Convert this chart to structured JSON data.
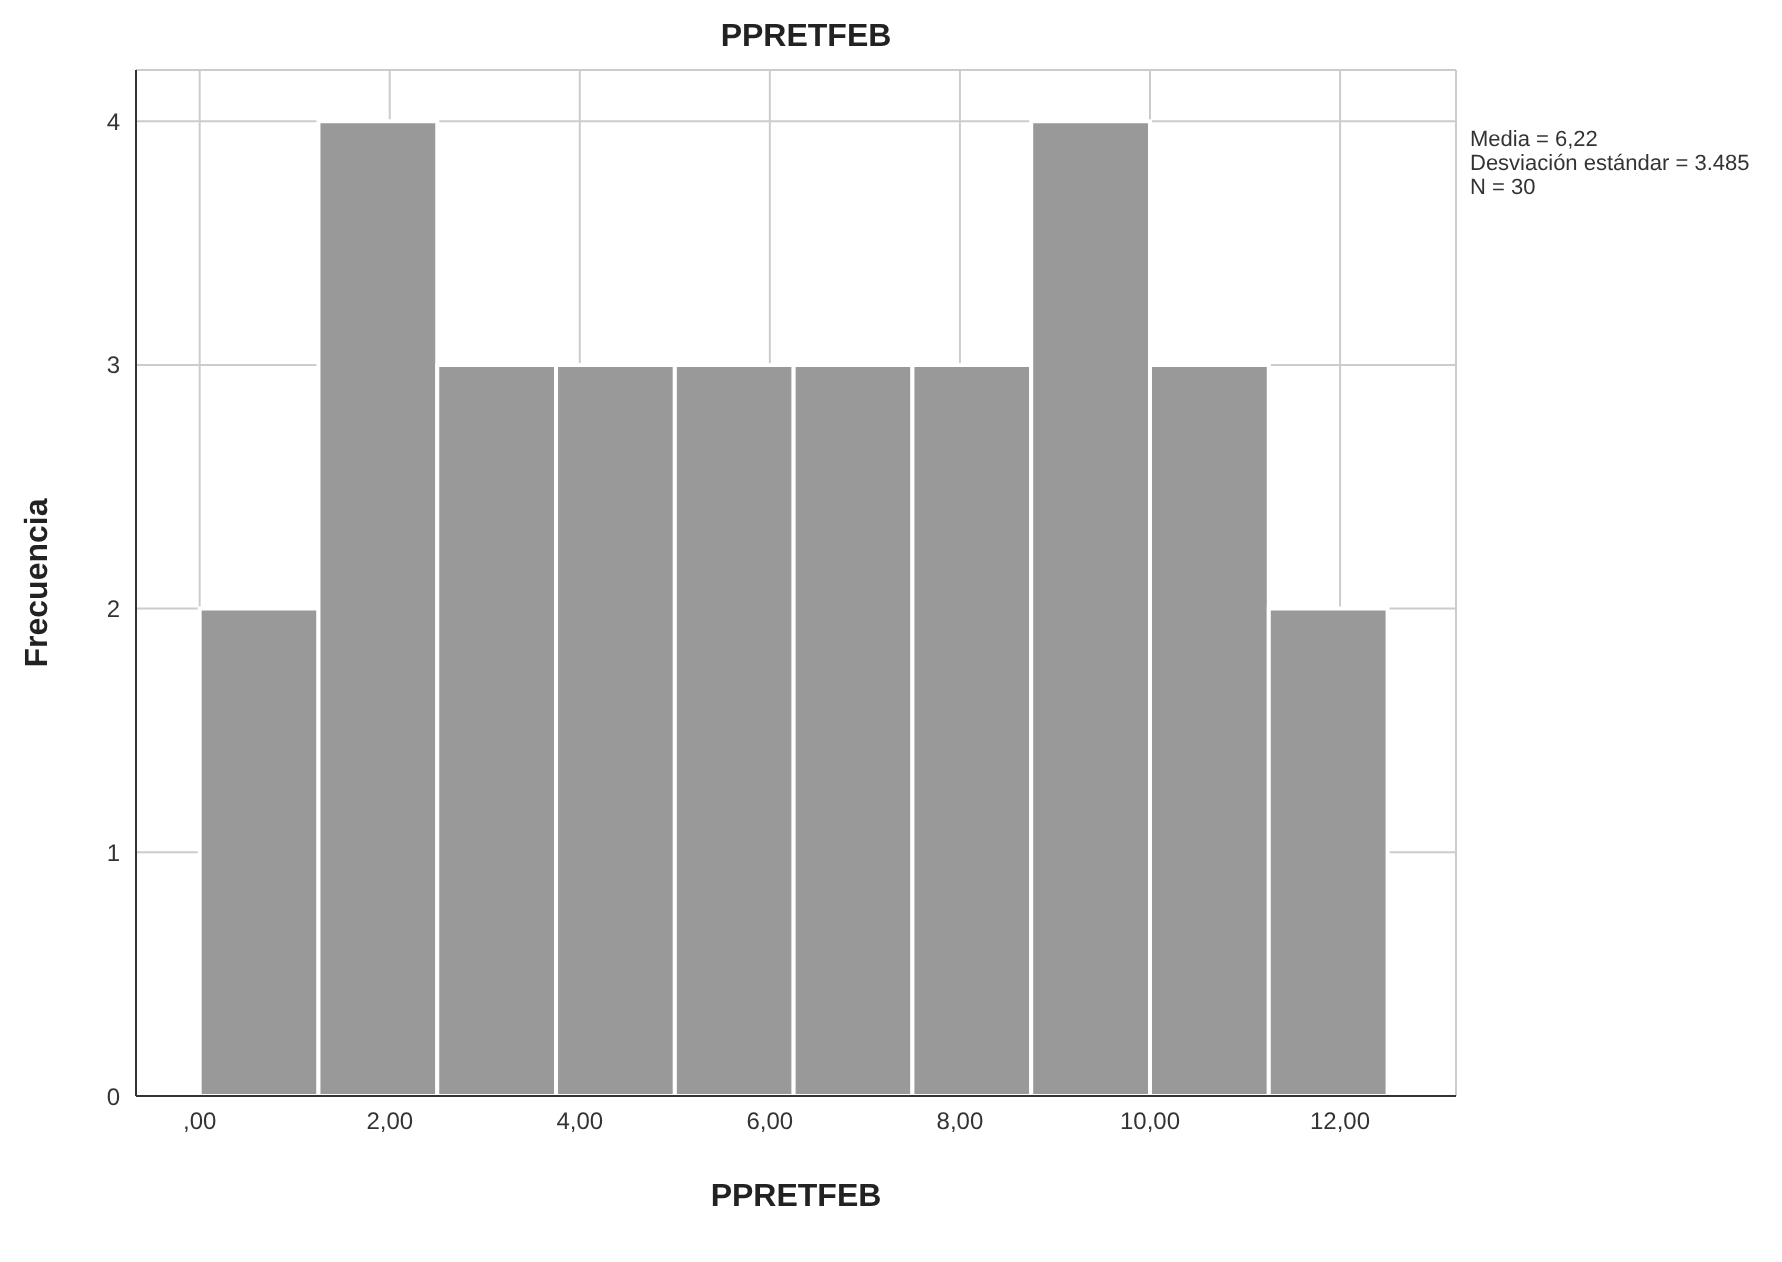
{
  "chart_data": {
    "type": "histogram",
    "title": "PPRETFEB",
    "xlabel": "PPRETFEB",
    "ylabel": "Frecuencia",
    "bins": [
      0,
      1.25,
      2.5,
      3.75,
      5,
      6.25,
      7.5,
      8.75,
      10,
      11.25,
      12.5
    ],
    "values": [
      2,
      4,
      3,
      3,
      3,
      3,
      3,
      4,
      3,
      2
    ],
    "color": "#999999",
    "xlim": [
      -0.67,
      13.22
    ],
    "xticks": [
      {
        "value": 0,
        "label": ",00"
      },
      {
        "value": 2,
        "label": "2,00"
      },
      {
        "value": 4,
        "label": "4,00"
      },
      {
        "value": 6,
        "label": "6,00"
      },
      {
        "value": 8,
        "label": "8,00"
      },
      {
        "value": 10,
        "label": "10,00"
      },
      {
        "value": 12,
        "label": "12,00"
      }
    ],
    "ylim": [
      0,
      4.21
    ],
    "yticks": [
      0,
      1,
      2,
      3,
      4
    ],
    "grid": true,
    "annotations": [
      "Media = 6,22",
      "Desviación estándar = 3.485",
      "N = 30"
    ]
  }
}
